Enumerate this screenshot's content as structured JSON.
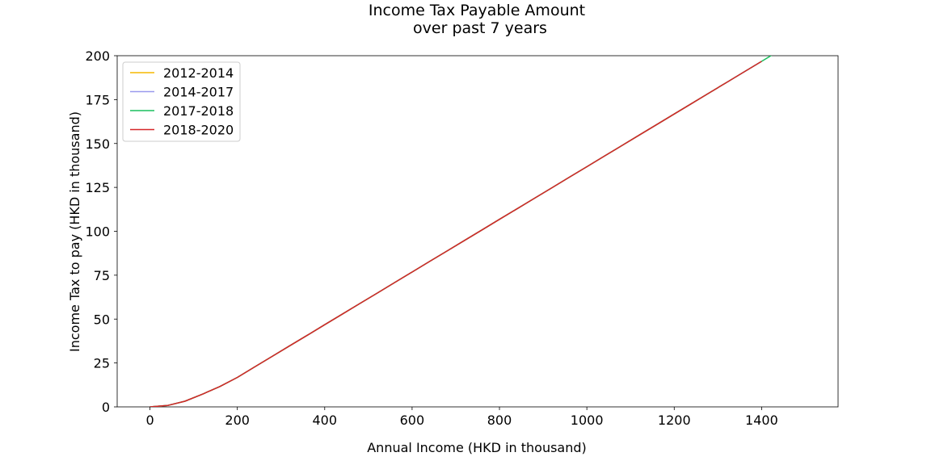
{
  "chart_data": {
    "type": "line",
    "title": "Income Tax Payable Amount",
    "subtitle": "over past 7 years",
    "xlabel": "Annual Income (HKD in thousand)",
    "ylabel": "Income Tax to pay (HKD in thousand)",
    "xlim": [
      -75,
      1575
    ],
    "ylim": [
      0,
      200
    ],
    "x_ticks": [
      0,
      200,
      400,
      600,
      800,
      1000,
      1200,
      1400
    ],
    "y_ticks": [
      0,
      25,
      50,
      75,
      100,
      125,
      150,
      175,
      200
    ],
    "grid": false,
    "legend_position": "top-left",
    "series": [
      {
        "name": "2012-2014",
        "color": "#f5b800",
        "x": [
          0,
          40,
          80,
          120,
          160,
          200,
          240,
          280,
          320,
          360,
          400,
          440,
          480,
          520,
          560,
          600,
          640,
          680,
          720,
          760,
          800,
          840,
          880,
          920,
          960,
          1000,
          1040,
          1080,
          1120,
          1160,
          1200,
          1240,
          1280,
          1320
        ],
        "y": [
          0,
          0.8,
          3.2,
          7.2,
          11.6,
          16.8,
          22.8,
          28.8,
          34.8,
          40.8,
          46.8,
          52.8,
          58.8,
          64.8,
          70.8,
          76.8,
          82.8,
          88.8,
          94.8,
          100.8,
          106.8,
          112.8,
          118.8,
          124.8,
          130.8,
          136.8,
          142.8,
          148.8,
          154.8,
          160.8,
          166.8,
          172.8,
          178.8,
          184.8
        ]
      },
      {
        "name": "2014-2017",
        "color": "#9999ee",
        "x": [
          0,
          40,
          80,
          120,
          160,
          200,
          240,
          280,
          320,
          360,
          400,
          440,
          480,
          520,
          560,
          600,
          640,
          680,
          720,
          760,
          800,
          840,
          880,
          920,
          960,
          1000,
          1040,
          1080,
          1120,
          1160,
          1200,
          1240,
          1280,
          1320,
          1360,
          1400
        ],
        "y": [
          0,
          0.8,
          3.2,
          7.2,
          11.6,
          16.8,
          22.8,
          28.8,
          34.8,
          40.8,
          46.8,
          52.8,
          58.8,
          64.8,
          70.8,
          76.8,
          82.8,
          88.8,
          94.8,
          100.8,
          106.8,
          112.8,
          118.8,
          124.8,
          130.8,
          136.8,
          142.8,
          148.8,
          154.8,
          160.8,
          166.8,
          172.8,
          178.8,
          184.8,
          190.8,
          196.8
        ]
      },
      {
        "name": "2017-2018",
        "color": "#1abf5e",
        "x": [
          0,
          40,
          80,
          120,
          160,
          200,
          240,
          280,
          320,
          360,
          400,
          440,
          480,
          520,
          560,
          600,
          640,
          680,
          720,
          760,
          800,
          840,
          880,
          920,
          960,
          1000,
          1040,
          1080,
          1120,
          1160,
          1200,
          1240,
          1280,
          1320,
          1360,
          1400,
          1440
        ],
        "y": [
          0,
          0.8,
          3.2,
          7.2,
          11.6,
          16.8,
          22.8,
          28.8,
          34.8,
          40.8,
          46.8,
          52.8,
          58.8,
          64.8,
          70.8,
          76.8,
          82.8,
          88.8,
          94.8,
          100.8,
          106.8,
          112.8,
          118.8,
          124.8,
          130.8,
          136.8,
          142.8,
          148.8,
          154.8,
          160.8,
          166.8,
          172.8,
          178.8,
          184.8,
          190.8,
          196.8,
          202.8
        ]
      },
      {
        "name": "2018-2020",
        "color": "#d62728",
        "x": [
          0,
          40,
          80,
          120,
          160,
          200,
          240,
          280,
          320,
          360,
          400,
          440,
          480,
          520,
          560,
          600,
          640,
          680,
          720,
          760,
          800,
          840,
          880,
          920,
          960,
          1000,
          1040,
          1080,
          1120,
          1160,
          1200,
          1240,
          1280,
          1320,
          1360,
          1400
        ],
        "y": [
          0,
          0.8,
          3.2,
          7.2,
          11.6,
          16.8,
          22.8,
          28.8,
          34.8,
          40.8,
          46.8,
          52.8,
          58.8,
          64.8,
          70.8,
          76.8,
          82.8,
          88.8,
          94.8,
          100.8,
          106.8,
          112.8,
          118.8,
          124.8,
          130.8,
          136.8,
          142.8,
          148.8,
          154.8,
          160.8,
          166.8,
          172.8,
          178.8,
          184.8,
          190.8,
          196.8
        ]
      }
    ]
  }
}
